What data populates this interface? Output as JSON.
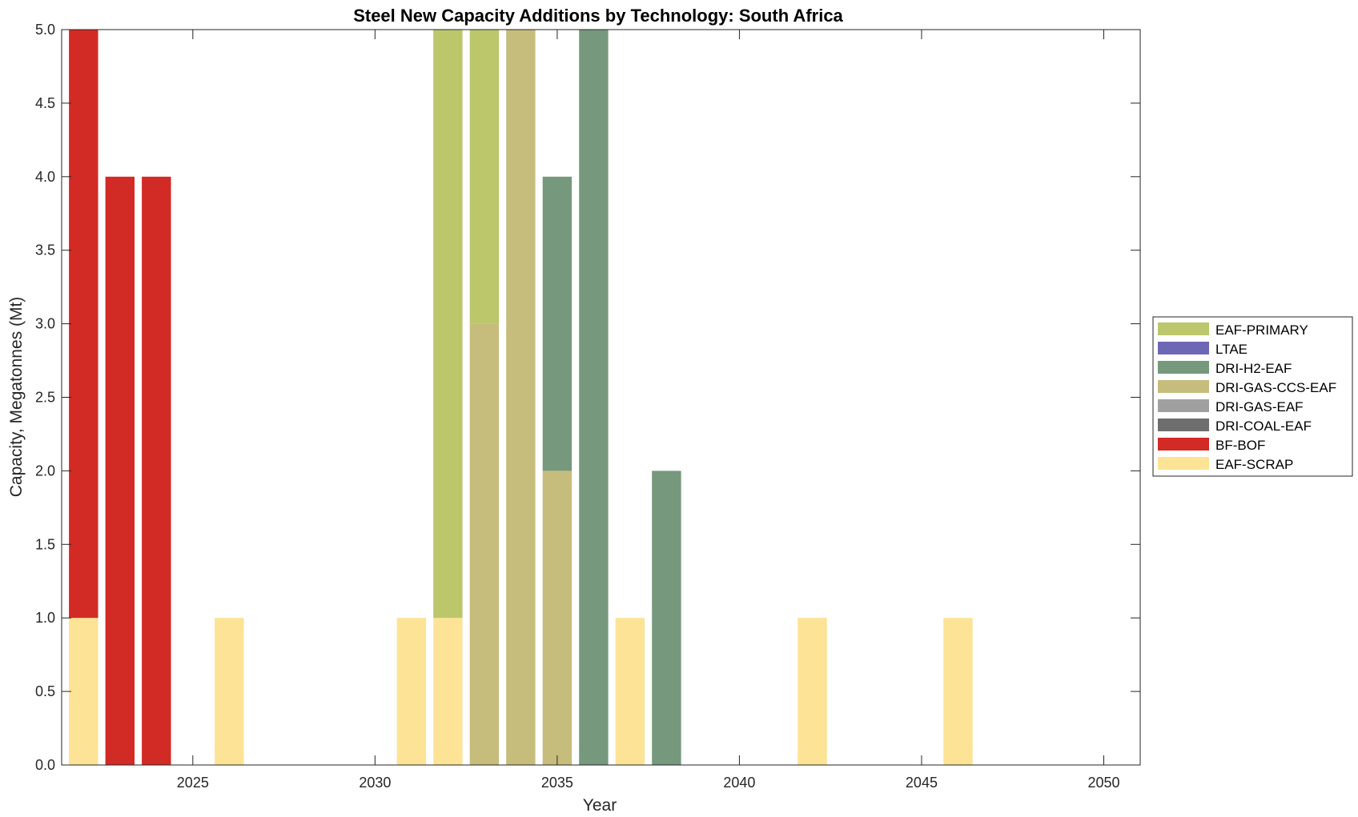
{
  "chart_data": {
    "type": "stacked-bar",
    "title": "Steel New Capacity Additions by Technology: South Africa",
    "xlabel": "Year",
    "ylabel": "Capacity, Megatonnes (Mt)",
    "xlim": [
      2021.4,
      2051
    ],
    "ylim": [
      0,
      5
    ],
    "xticks": [
      2025,
      2030,
      2035,
      2040,
      2045,
      2050
    ],
    "yticks": [
      "0.0",
      "0.5",
      "1.0",
      "1.5",
      "2.0",
      "2.5",
      "3.0",
      "3.5",
      "4.0",
      "4.5",
      "5.0"
    ],
    "years": [
      2022,
      2023,
      2024,
      2026,
      2031,
      2032,
      2033,
      2034,
      2035,
      2036,
      2037,
      2038,
      2042,
      2046
    ],
    "stack_order": [
      "EAF-SCRAP",
      "BF-BOF",
      "DRI-COAL-EAF",
      "DRI-GAS-EAF",
      "DRI-GAS-CCS-EAF",
      "DRI-H2-EAF",
      "LTAE",
      "EAF-PRIMARY"
    ],
    "series": [
      {
        "name": "EAF-SCRAP",
        "color": "#fde395",
        "values": [
          1,
          0,
          0,
          1,
          1,
          1,
          0,
          0,
          0,
          0,
          1,
          0,
          1,
          1
        ]
      },
      {
        "name": "BF-BOF",
        "color": "#d22a24",
        "values": [
          4,
          4,
          4,
          0,
          0,
          0,
          0,
          0,
          0,
          0,
          0,
          0,
          0,
          0
        ]
      },
      {
        "name": "DRI-COAL-EAF",
        "color": "#6e6e6e",
        "values": [
          0,
          0,
          0,
          0,
          0,
          0,
          0,
          0,
          0,
          0,
          0,
          0,
          0,
          0
        ]
      },
      {
        "name": "DRI-GAS-EAF",
        "color": "#a0a0a0",
        "values": [
          0,
          0,
          0,
          0,
          0,
          0,
          0,
          0,
          0,
          0,
          0,
          0,
          0,
          0
        ]
      },
      {
        "name": "DRI-GAS-CCS-EAF",
        "color": "#c6bd7c",
        "values": [
          0,
          0,
          0,
          0,
          0,
          0,
          3,
          5,
          2,
          0,
          0,
          0,
          0,
          0
        ]
      },
      {
        "name": "DRI-H2-EAF",
        "color": "#76987d",
        "values": [
          0,
          0,
          0,
          0,
          0,
          0,
          0,
          0,
          2,
          5,
          0,
          2,
          0,
          0
        ]
      },
      {
        "name": "LTAE",
        "color": "#6e67b6",
        "values": [
          0,
          0,
          0,
          0,
          0,
          0,
          0,
          0,
          0,
          0,
          0,
          0,
          0,
          0
        ]
      },
      {
        "name": "EAF-PRIMARY",
        "color": "#bcc76b",
        "values": [
          0,
          0,
          0,
          0,
          0,
          4,
          2,
          0,
          0,
          0,
          0,
          0,
          0,
          0
        ]
      }
    ],
    "legend": {
      "placement": "right",
      "entries": [
        "EAF-PRIMARY",
        "LTAE",
        "DRI-H2-EAF",
        "DRI-GAS-CCS-EAF",
        "DRI-GAS-EAF",
        "DRI-COAL-EAF",
        "BF-BOF",
        "EAF-SCRAP"
      ]
    }
  }
}
